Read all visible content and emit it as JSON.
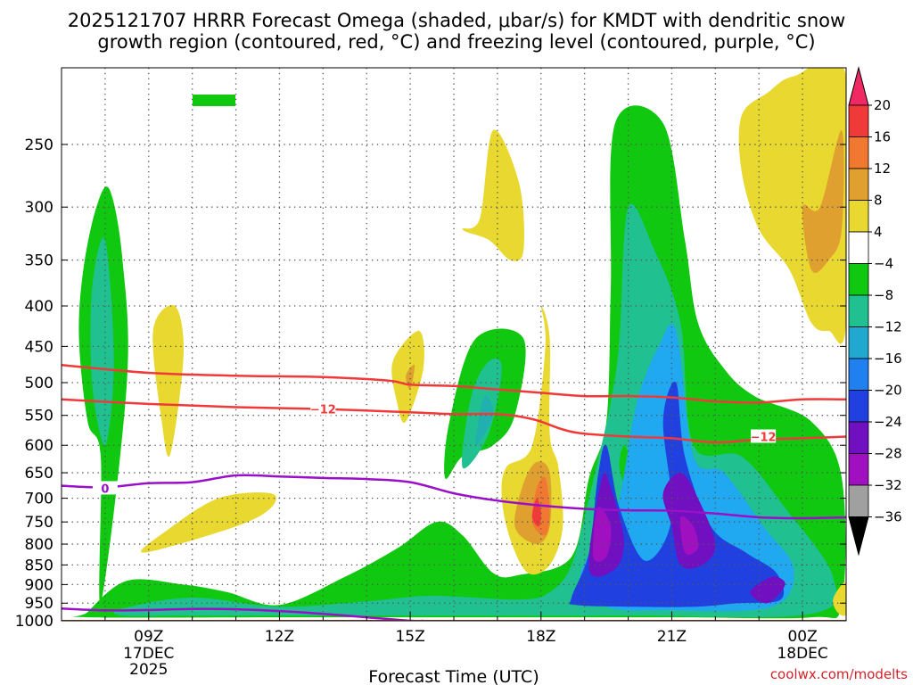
{
  "title_line1": "2025121707 HRRR Forecast Omega (shaded, μbar/s) for KMDT with dendritic snow",
  "title_line2": "growth region (contoured, red, °C) and freezing level (contoured, purple, °C)",
  "xlabel": "Forecast Time (UTC)",
  "credit": "coolwx.com/modelts",
  "chart_data": {
    "type": "heatmap",
    "title": "2025121707 HRRR Forecast Omega (shaded, μbar/s) for KMDT with dendritic snow growth region (contoured, red, °C) and freezing level (contoured, purple, °C)",
    "xlabel": "Forecast Time (UTC)",
    "ylabel": "",
    "x_range_hours": [
      7,
      25
    ],
    "y_range_mb": [
      1000,
      200
    ],
    "y_scale": "log-pressure",
    "y_ticks": [
      250,
      300,
      350,
      400,
      450,
      500,
      550,
      600,
      650,
      700,
      750,
      800,
      850,
      900,
      950,
      1000
    ],
    "x_ticks": [
      {
        "hour": 9,
        "label": "09Z",
        "sub1": "17DEC",
        "sub2": "2025"
      },
      {
        "hour": 12,
        "label": "12Z",
        "sub1": "",
        "sub2": ""
      },
      {
        "hour": 15,
        "label": "15Z",
        "sub1": "",
        "sub2": ""
      },
      {
        "hour": 18,
        "label": "18Z",
        "sub1": "",
        "sub2": ""
      },
      {
        "hour": 21,
        "label": "21Z",
        "sub1": "",
        "sub2": ""
      },
      {
        "hour": 24,
        "label": "00Z",
        "sub1": "18DEC",
        "sub2": ""
      }
    ],
    "grid": true,
    "colorbar": {
      "labels": [
        "20",
        "16",
        "12",
        "8",
        "4",
        "−4",
        "−8",
        "−12",
        "−16",
        "−20",
        "−24",
        "−28",
        "−32",
        "−36"
      ],
      "colors": [
        "#f02863",
        "#f03a3a",
        "#f07830",
        "#e0a030",
        "#e8d830",
        "#ffffff",
        "#10c810",
        "#20c090",
        "#20a8d0",
        "#2080f0",
        "#2040e0",
        "#7010c0",
        "#a010c0",
        "#a0a0a0"
      ]
    },
    "omega_colors": {
      "y4": "#e8d830",
      "y8": "#e0a030",
      "o12": "#f07830",
      "r16": "#f03a3a",
      "g4": "#10c810",
      "g8": "#20c090",
      "c12": "#20b0b0",
      "c16": "#20a8f0",
      "b20": "#2040e0",
      "p24": "#7010c0",
      "m28": "#a010c0"
    },
    "omega_regions": [
      {
        "level": "g4",
        "pts": [
          [
            7.9,
            950
          ],
          [
            8.5,
            500
          ],
          [
            8.4,
            350
          ],
          [
            8.1,
            285
          ],
          [
            7.8,
            300
          ],
          [
            7.5,
            360
          ],
          [
            7.4,
            440
          ],
          [
            7.6,
            560
          ],
          [
            7.9,
            620
          ]
        ]
      },
      {
        "level": "g8",
        "pts": [
          [
            8.0,
            600
          ],
          [
            8.2,
            470
          ],
          [
            8.0,
            330
          ],
          [
            7.7,
            380
          ],
          [
            7.7,
            500
          ]
        ]
      },
      {
        "level": "y4",
        "pts": [
          [
            9.5,
            615
          ],
          [
            9.8,
            460
          ],
          [
            9.6,
            400
          ],
          [
            9.1,
            430
          ],
          [
            9.3,
            560
          ]
        ]
      },
      {
        "level": "y4",
        "pts": [
          [
            8.9,
            820
          ],
          [
            11,
            760
          ],
          [
            11.8,
            720
          ],
          [
            11.8,
            690
          ],
          [
            10.6,
            700
          ],
          [
            9.4,
            770
          ]
        ]
      },
      {
        "level": "y4",
        "pts": [
          [
            14.9,
            560
          ],
          [
            15.3,
            480
          ],
          [
            15.2,
            430
          ],
          [
            14.6,
            470
          ],
          [
            14.7,
            530
          ]
        ]
      },
      {
        "level": "y8",
        "pts": [
          [
            15.0,
            510
          ],
          [
            15.1,
            475
          ],
          [
            14.9,
            490
          ]
        ]
      },
      {
        "level": "y4",
        "pts": [
          [
            16.8,
            330
          ],
          [
            17.3,
            350
          ],
          [
            17.6,
            340
          ],
          [
            17.5,
            280
          ],
          [
            16.9,
            240
          ],
          [
            16.6,
            310
          ],
          [
            16.2,
            320
          ]
        ]
      },
      {
        "level": "g4",
        "pts": [
          [
            7.6,
            975
          ],
          [
            8.5,
            890
          ],
          [
            9.8,
            900
          ],
          [
            10.8,
            920
          ],
          [
            12.0,
            955
          ],
          [
            13.5,
            880
          ],
          [
            14.7,
            810
          ],
          [
            15.6,
            750
          ],
          [
            16.2,
            780
          ],
          [
            16.9,
            870
          ],
          [
            17.5,
            875
          ],
          [
            18.7,
            830
          ],
          [
            19.1,
            660
          ],
          [
            19.5,
            560
          ],
          [
            19.6,
            380
          ],
          [
            19.7,
            235
          ],
          [
            20.8,
            235
          ],
          [
            21.3,
            330
          ],
          [
            21.6,
            420
          ],
          [
            22.2,
            480
          ],
          [
            22.9,
            520
          ],
          [
            24.2,
            560
          ],
          [
            24.9,
            660
          ],
          [
            24.9,
            950
          ],
          [
            24.2,
            990
          ],
          [
            21.0,
            990
          ],
          [
            16.0,
            990
          ],
          [
            12.0,
            990
          ],
          [
            7.6,
            990
          ]
        ]
      },
      {
        "level": "g4",
        "pts": [
          [
            15.8,
            660
          ],
          [
            15.9,
            560
          ],
          [
            16.5,
            440
          ],
          [
            17.6,
            440
          ],
          [
            17.4,
            550
          ],
          [
            16.9,
            600
          ],
          [
            16.2,
            620
          ]
        ]
      },
      {
        "level": "g8",
        "pts": [
          [
            16.2,
            640
          ],
          [
            16.4,
            520
          ],
          [
            16.8,
            470
          ],
          [
            17.1,
            480
          ],
          [
            16.8,
            580
          ]
        ]
      },
      {
        "level": "c12",
        "pts": [
          [
            16.5,
            600
          ],
          [
            16.7,
            520
          ],
          [
            16.9,
            550
          ]
        ]
      },
      {
        "level": "g8",
        "pts": [
          [
            8.4,
            965
          ],
          [
            10.0,
            935
          ],
          [
            12.0,
            960
          ],
          [
            14.0,
            945
          ],
          [
            15.5,
            930
          ],
          [
            17.5,
            940
          ],
          [
            18.2,
            920
          ],
          [
            18.7,
            850
          ],
          [
            19.1,
            700
          ],
          [
            19.6,
            530
          ],
          [
            19.8,
            440
          ],
          [
            20.0,
            300
          ],
          [
            20.6,
            340
          ],
          [
            21.2,
            420
          ],
          [
            21.5,
            600
          ],
          [
            22.6,
            620
          ],
          [
            23.6,
            720
          ],
          [
            24.7,
            880
          ],
          [
            24.2,
            980
          ],
          [
            20.0,
            985
          ],
          [
            15.0,
            985
          ],
          [
            10.0,
            985
          ],
          [
            8.4,
            985
          ]
        ]
      },
      {
        "level": "g4",
        "pts": [
          [
            20.0,
            690
          ],
          [
            20.1,
            640
          ],
          [
            19.9,
            600
          ],
          [
            19.8,
            640
          ]
        ]
      },
      {
        "level": "c16",
        "pts": [
          [
            18.9,
            880
          ],
          [
            19.5,
            760
          ],
          [
            19.8,
            700
          ],
          [
            20.2,
            530
          ],
          [
            20.7,
            450
          ],
          [
            21.1,
            430
          ],
          [
            21.5,
            620
          ],
          [
            22.2,
            650
          ],
          [
            23.1,
            760
          ],
          [
            23.8,
            860
          ],
          [
            23.3,
            960
          ],
          [
            21.0,
            970
          ],
          [
            19.5,
            960
          ]
        ]
      },
      {
        "level": "b20",
        "pts": [
          [
            18.7,
            935
          ],
          [
            19.1,
            820
          ],
          [
            19.3,
            660
          ],
          [
            19.5,
            600
          ],
          [
            19.8,
            720
          ],
          [
            20.4,
            840
          ],
          [
            21.0,
            740
          ],
          [
            20.8,
            560
          ],
          [
            21.1,
            500
          ],
          [
            21.3,
            620
          ],
          [
            21.9,
            760
          ],
          [
            22.7,
            820
          ],
          [
            23.4,
            870
          ],
          [
            23.5,
            940
          ],
          [
            22.5,
            950
          ],
          [
            21.5,
            960
          ],
          [
            20.0,
            960
          ],
          [
            18.8,
            955
          ]
        ]
      },
      {
        "level": "p24",
        "pts": [
          [
            19.1,
            860
          ],
          [
            19.4,
            660
          ],
          [
            19.6,
            680
          ],
          [
            19.9,
            790
          ],
          [
            19.7,
            860
          ]
        ]
      },
      {
        "level": "p24",
        "pts": [
          [
            21.2,
            850
          ],
          [
            21.0,
            760
          ],
          [
            20.8,
            690
          ],
          [
            21.2,
            650
          ],
          [
            21.6,
            700
          ],
          [
            22.0,
            800
          ],
          [
            21.7,
            850
          ]
        ]
      },
      {
        "level": "p24",
        "pts": [
          [
            22.8,
            920
          ],
          [
            23.3,
            880
          ],
          [
            23.6,
            900
          ],
          [
            23.2,
            950
          ]
        ]
      },
      {
        "level": "m28",
        "pts": [
          [
            19.2,
            830
          ],
          [
            19.3,
            720
          ],
          [
            19.6,
            760
          ],
          [
            19.5,
            830
          ]
        ]
      },
      {
        "level": "m28",
        "pts": [
          [
            21.3,
            820
          ],
          [
            21.2,
            740
          ],
          [
            21.5,
            760
          ],
          [
            21.6,
            810
          ]
        ]
      },
      {
        "level": "y4",
        "pts": [
          [
            17.3,
            790
          ],
          [
            17.1,
            700
          ],
          [
            17.2,
            640
          ],
          [
            17.8,
            600
          ],
          [
            18.1,
            450
          ],
          [
            18.0,
            400
          ],
          [
            18.2,
            440
          ],
          [
            18.2,
            580
          ],
          [
            18.4,
            640
          ],
          [
            18.5,
            760
          ],
          [
            18.2,
            850
          ],
          [
            17.7,
            870
          ]
        ]
      },
      {
        "level": "y8",
        "pts": [
          [
            17.4,
            760
          ],
          [
            17.6,
            670
          ],
          [
            17.9,
            630
          ],
          [
            18.2,
            650
          ],
          [
            18.2,
            760
          ],
          [
            17.9,
            800
          ]
        ]
      },
      {
        "level": "o12",
        "pts": [
          [
            17.8,
            750
          ],
          [
            17.9,
            680
          ],
          [
            18.1,
            660
          ],
          [
            18.2,
            730
          ],
          [
            18.1,
            780
          ]
        ]
      },
      {
        "level": "r16",
        "pts": [
          [
            17.8,
            740
          ],
          [
            17.9,
            700
          ],
          [
            18.0,
            730
          ],
          [
            17.95,
            760
          ]
        ]
      },
      {
        "level": "y4",
        "pts": [
          [
            23.2,
            215
          ],
          [
            23.8,
            205
          ],
          [
            25.0,
            205
          ],
          [
            25.0,
            420
          ],
          [
            24.6,
            430
          ],
          [
            24.2,
            420
          ],
          [
            23.7,
            360
          ],
          [
            23.0,
            320
          ],
          [
            22.6,
            270
          ],
          [
            22.6,
            230
          ]
        ]
      },
      {
        "level": "y8",
        "pts": [
          [
            24.0,
            300
          ],
          [
            24.4,
            300
          ],
          [
            24.9,
            240
          ],
          [
            24.9,
            320
          ],
          [
            24.6,
            350
          ],
          [
            24.2,
            360
          ]
        ]
      },
      {
        "level": "y4",
        "pts": [
          [
            24.7,
            940
          ],
          [
            24.9,
            900
          ],
          [
            25.0,
            900
          ],
          [
            25.0,
            980
          ],
          [
            24.8,
            975
          ]
        ]
      }
    ],
    "legend_swatch": {
      "level": "g4"
    },
    "dgz_contours": [
      {
        "label": "",
        "x": [
          7,
          9,
          11,
          13,
          14.5,
          15,
          16,
          17,
          18,
          19,
          20,
          21,
          22,
          23,
          24,
          25
        ],
        "y": [
          475,
          486,
          490,
          492,
          497,
          503,
          505,
          510,
          515,
          520,
          520,
          522,
          528,
          530,
          525,
          525
        ]
      },
      {
        "label": "−12",
        "label_at": [
          13.0,
          540
        ],
        "label2_at": [
          23.1,
          585
        ],
        "x": [
          7,
          9,
          11,
          13,
          15,
          16,
          17,
          17.8,
          18.5,
          19,
          20,
          21,
          22,
          23,
          24,
          25
        ],
        "y": [
          525,
          532,
          537,
          540,
          545,
          548,
          548,
          556,
          573,
          580,
          585,
          588,
          595,
          590,
          588,
          585
        ]
      }
    ],
    "freezing_contours": [
      {
        "label": "0",
        "label_at": [
          8.0,
          680
        ],
        "x": [
          7,
          8,
          9,
          10,
          11,
          12,
          13,
          14,
          15,
          16,
          17,
          18,
          19,
          20,
          21,
          22,
          23,
          24,
          25
        ],
        "y": [
          675,
          678,
          670,
          668,
          655,
          657,
          660,
          662,
          668,
          690,
          705,
          715,
          722,
          725,
          726,
          732,
          740,
          742,
          740
        ]
      },
      {
        "label": "",
        "x": [
          7,
          8,
          9,
          10,
          11,
          12,
          13,
          14,
          15,
          15.3
        ],
        "y": [
          965,
          970,
          969,
          966,
          967,
          972,
          980,
          990,
          1000,
          1000
        ]
      }
    ],
    "terrain_color": "#a05a2c"
  }
}
